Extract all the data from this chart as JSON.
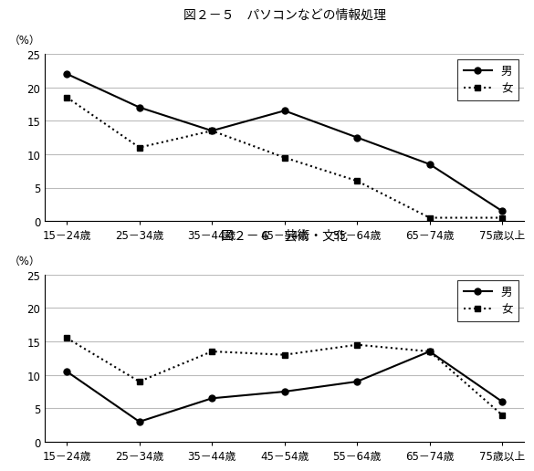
{
  "title1": "図２－５　パソコンなどの情報処理",
  "title2": "図２－６　芸術・文化",
  "categories": [
    "15－24歳",
    "25－34歳",
    "35－44歳",
    "45－54歳",
    "55－64歳",
    "65－74歳",
    "75歳以上"
  ],
  "chart1": {
    "male": [
      22,
      17,
      13.5,
      16.5,
      12.5,
      8.5,
      1.5
    ],
    "female": [
      18.5,
      11,
      13.5,
      9.5,
      6,
      0.5,
      0.5
    ]
  },
  "chart2": {
    "male": [
      10.5,
      3,
      6.5,
      7.5,
      9,
      13.5,
      6
    ],
    "female": [
      15.5,
      9,
      13.5,
      13,
      14.5,
      13.5,
      4
    ]
  },
  "ylabel": "（%）",
  "ylim": [
    0,
    25
  ],
  "yticks": [
    0,
    5,
    10,
    15,
    20,
    25
  ],
  "legend_male": "男",
  "legend_female": "女",
  "line_color": "#000000",
  "bg_color": "#ffffff",
  "grid_color": "#bbbbbb"
}
